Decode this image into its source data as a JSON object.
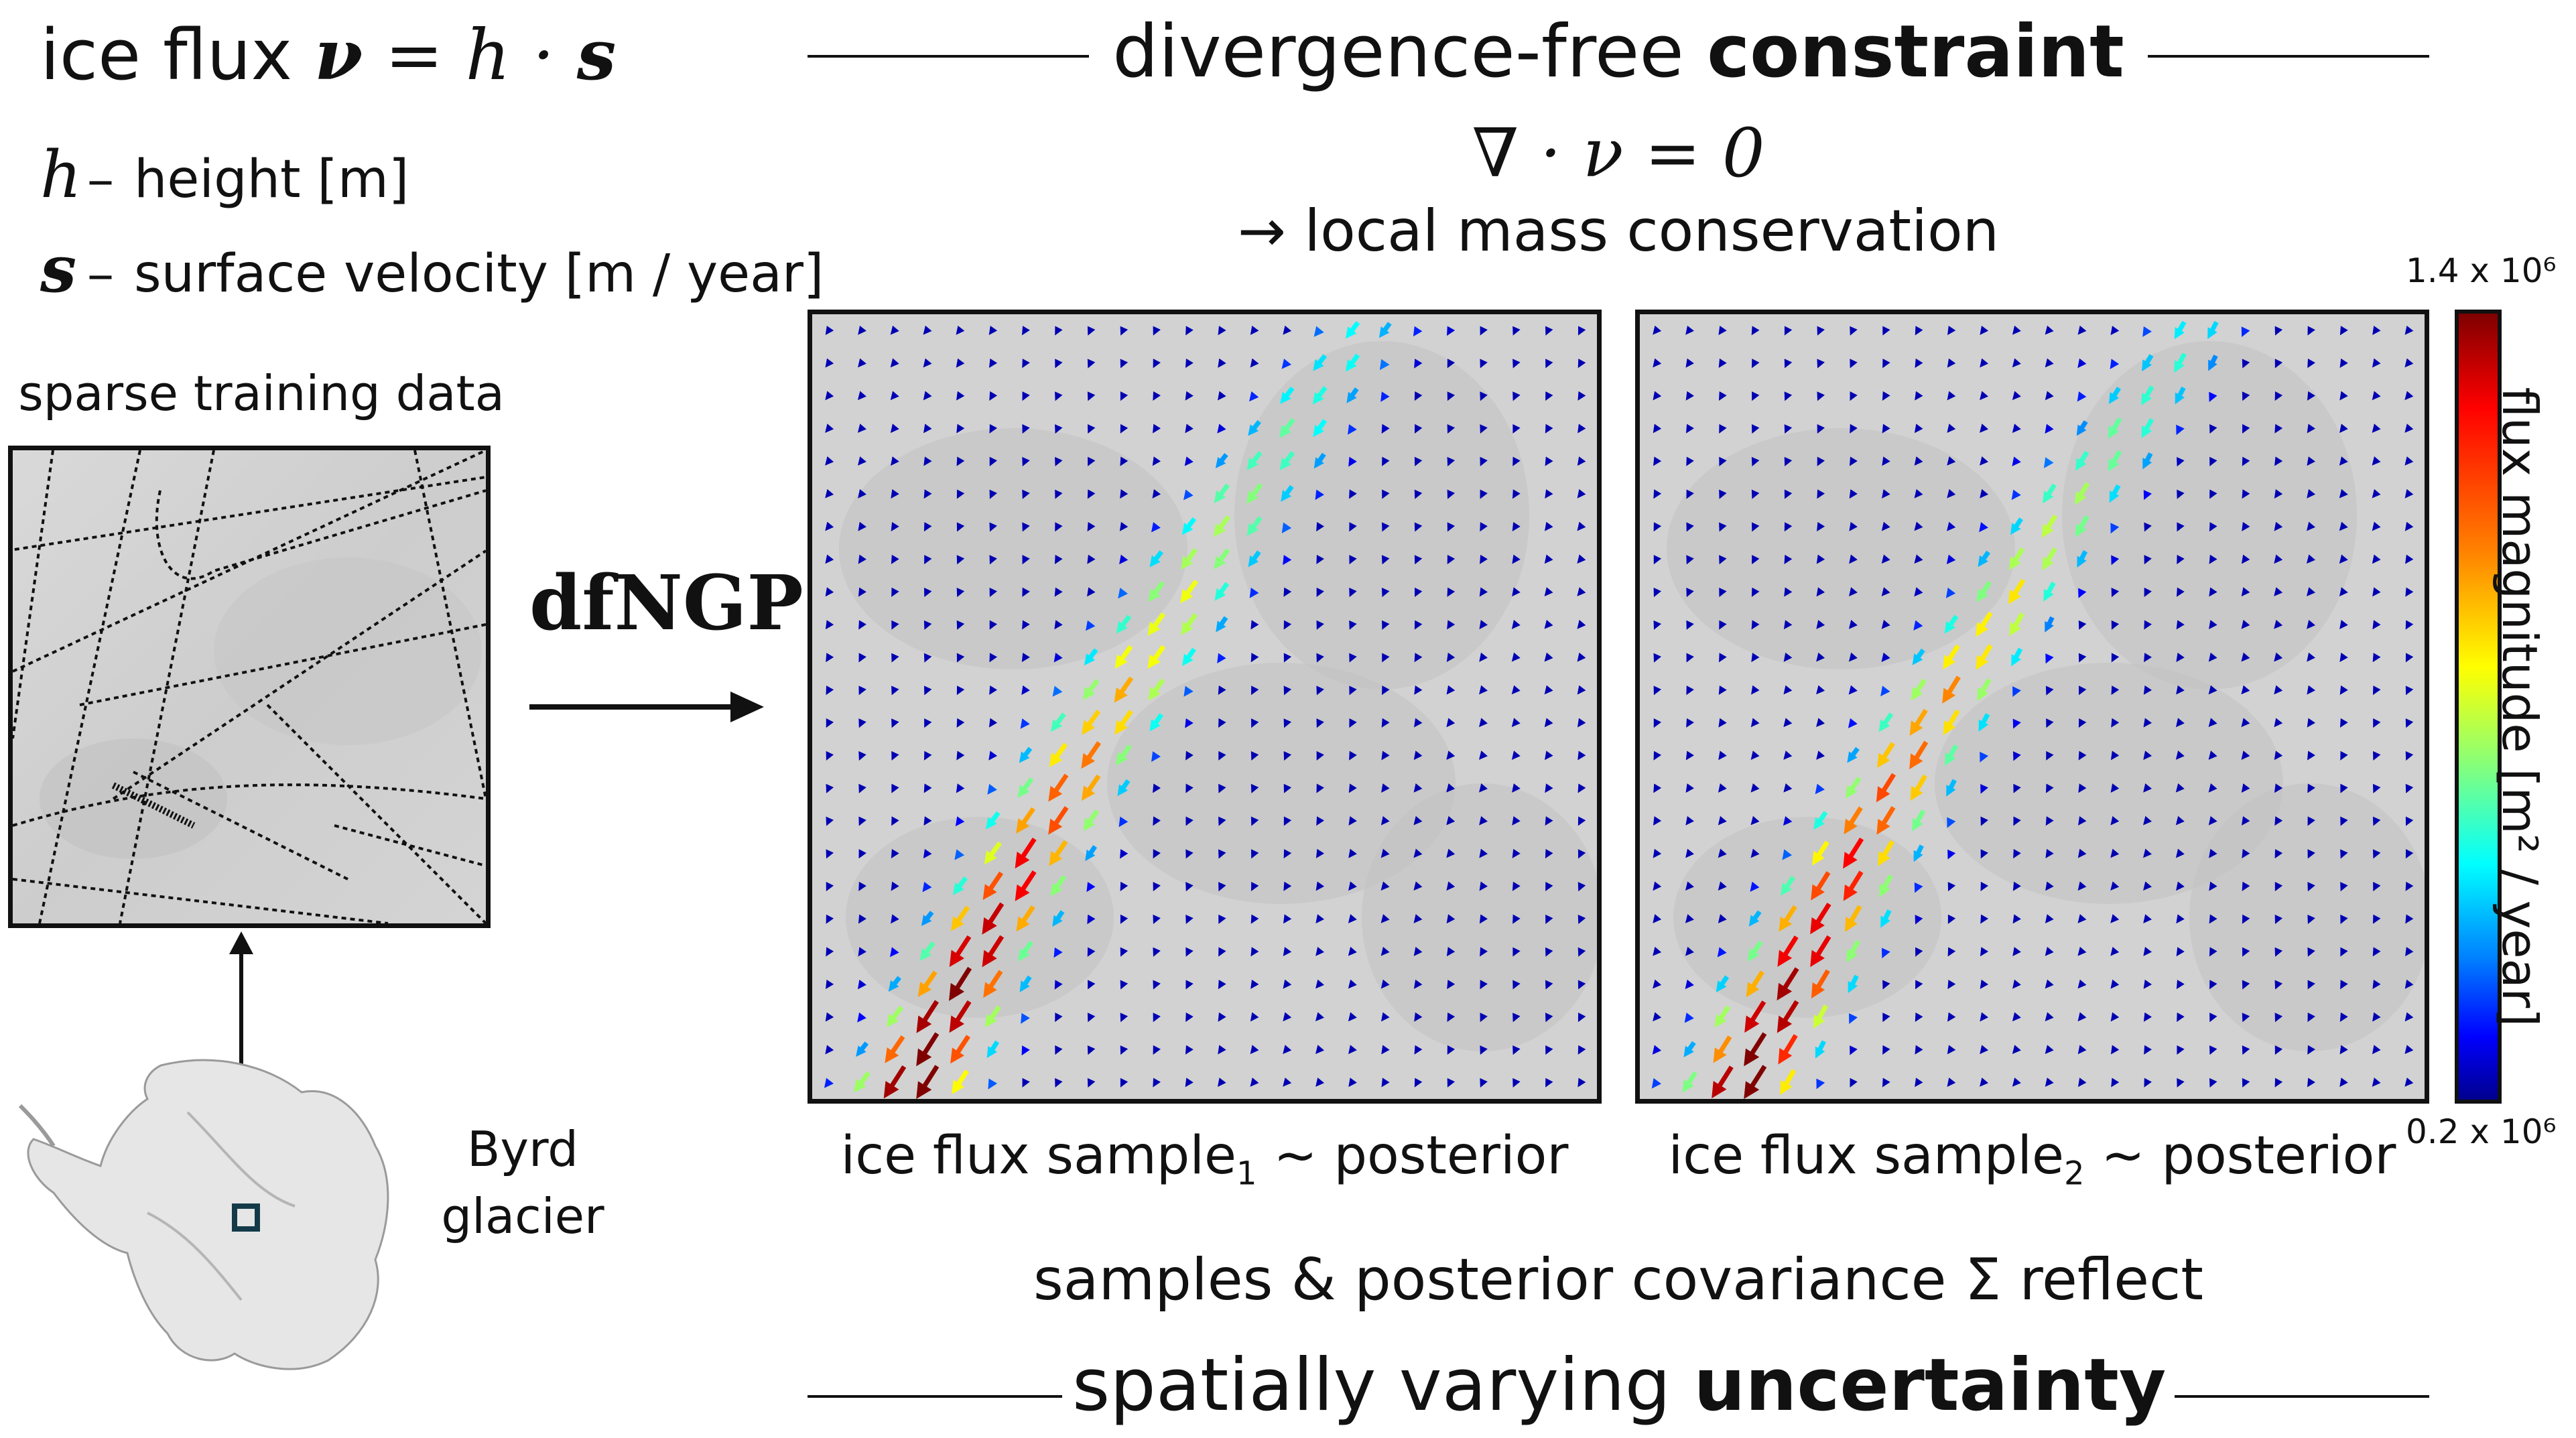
{
  "title": {
    "prefix": "ice flux",
    "formula_lhs": "ν",
    "formula_eq": " = ",
    "formula_h": "h",
    "formula_dot": " · ",
    "formula_s": "s"
  },
  "legend": [
    {
      "symbol": "h",
      "dash": "–",
      "text": "height [m]"
    },
    {
      "symbol": "s",
      "dash": "–",
      "text": "surface velocity [m / year]"
    }
  ],
  "training_label": "sparse training data",
  "glacier_label": [
    "Byrd",
    "glacier"
  ],
  "method_label": "dfNGP",
  "constraint": {
    "title_normal": "divergence-free ",
    "title_bold": "constraint",
    "equation": "∇ · ν = 0",
    "consequence": "→ local mass conservation"
  },
  "samples": [
    {
      "caption_prefix": "ice flux sample",
      "subscript": "1",
      "caption_suffix": " ~ posterior"
    },
    {
      "caption_prefix": "ice flux sample",
      "subscript": "2",
      "caption_suffix": " ~ posterior"
    }
  ],
  "colorbar": {
    "max_label": "1.4 x 10⁶",
    "min_label": "0.2 x 10⁶",
    "axis_label": "flux magnitude [m² / year]",
    "colormap": "jet"
  },
  "footer": {
    "line1": "samples & posterior covariance Σ reflect",
    "line2_normal": "spatially varying ",
    "line2_bold": "uncertainty"
  }
}
